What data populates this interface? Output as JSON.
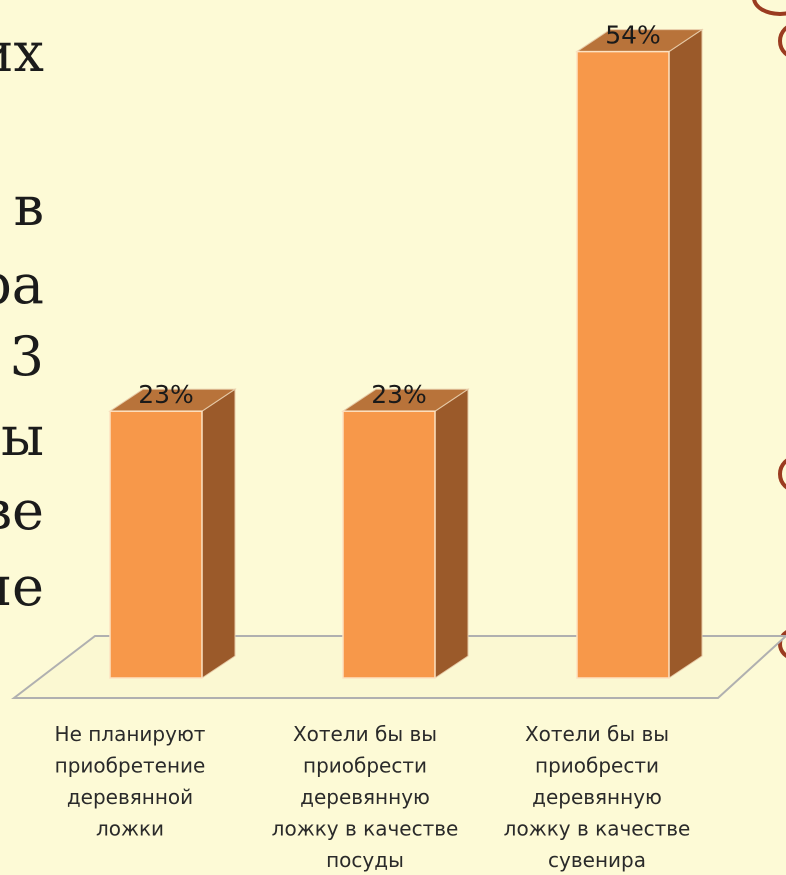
{
  "background_text": [
    "их",
    "в",
    "ра",
    "3",
    "ы",
    "ве",
    "ие"
  ],
  "chart_data": {
    "type": "bar",
    "title": "",
    "xlabel": "",
    "ylabel": "",
    "ylim": [
      0,
      60
    ],
    "grid": false,
    "categories": [
      "Не планируют приобретение деревянной ложки",
      "Хотели бы вы приобрести деревянную ложку в качестве посуды",
      "Хотели бы вы приобрести деревянную ложку в качестве сувенира"
    ],
    "category_lines": [
      [
        "Не планируют",
        "приобретение",
        "деревянной",
        "ложки"
      ],
      [
        "Хотели бы вы",
        "приобрести",
        "деревянную",
        "ложку в качестве",
        "посуды"
      ],
      [
        "Хотели бы вы",
        "приобрести",
        "деревянную",
        "ложку в качестве",
        "сувенира"
      ]
    ],
    "values": [
      23,
      23,
      54
    ],
    "data_labels": [
      "23%",
      "23%",
      "54%"
    ],
    "colors": {
      "front": "#f7984a",
      "side": "#9b5a2a",
      "top": "#b8733a",
      "floor": "#b0b0b0"
    }
  }
}
